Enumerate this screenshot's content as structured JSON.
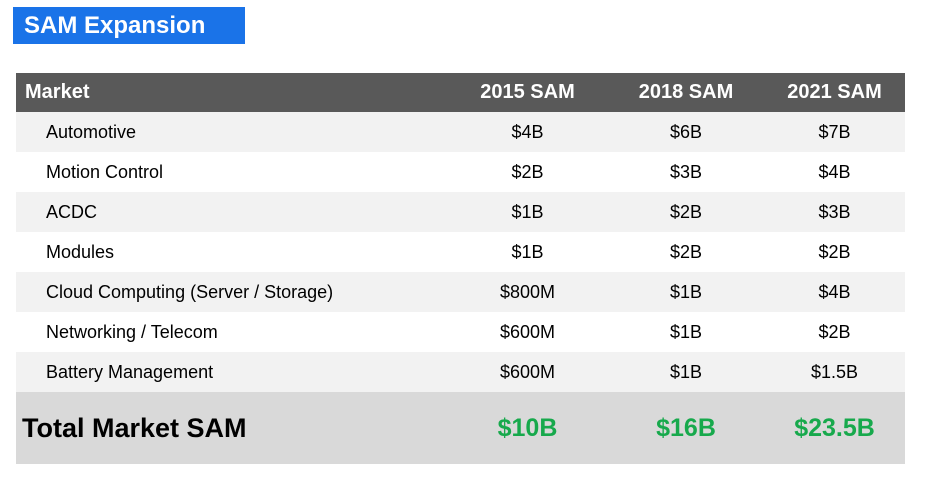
{
  "title": {
    "label": "SAM Expansion"
  },
  "colors": {
    "title_bg_blue": "#1a73e8",
    "header_bg_gray": "#595959",
    "row_alt_gray": "#f2f2f2",
    "total_bg_gray": "#d9d9d9",
    "total_value_green": "#17a94c"
  },
  "table": {
    "columns": [
      "Market",
      "2015 SAM",
      "2018 SAM",
      "2021 SAM"
    ],
    "rows": [
      {
        "market": "Automotive",
        "sam2015": "$4B",
        "sam2018": "$6B",
        "sam2021": "$7B"
      },
      {
        "market": "Motion Control",
        "sam2015": "$2B",
        "sam2018": "$3B",
        "sam2021": "$4B"
      },
      {
        "market": "ACDC",
        "sam2015": "$1B",
        "sam2018": "$2B",
        "sam2021": "$3B"
      },
      {
        "market": "Modules",
        "sam2015": "$1B",
        "sam2018": "$2B",
        "sam2021": "$2B"
      },
      {
        "market": "Cloud Computing (Server / Storage)",
        "sam2015": "$800M",
        "sam2018": "$1B",
        "sam2021": "$4B"
      },
      {
        "market": "Networking / Telecom",
        "sam2015": "$600M",
        "sam2018": "$1B",
        "sam2021": "$2B"
      },
      {
        "market": "Battery Management",
        "sam2015": "$600M",
        "sam2018": "$1B",
        "sam2021": "$1.5B"
      }
    ],
    "total": {
      "label": "Total Market SAM",
      "sam2015": "$10B",
      "sam2018": "$16B",
      "sam2021": "$23.5B"
    }
  },
  "chart_data": {
    "type": "table",
    "title": "SAM Expansion",
    "columns": [
      "Market",
      "2015 SAM",
      "2018 SAM",
      "2021 SAM"
    ],
    "rows": [
      [
        "Automotive",
        "$4B",
        "$6B",
        "$7B"
      ],
      [
        "Motion Control",
        "$2B",
        "$3B",
        "$4B"
      ],
      [
        "ACDC",
        "$1B",
        "$2B",
        "$3B"
      ],
      [
        "Modules",
        "$1B",
        "$2B",
        "$2B"
      ],
      [
        "Cloud Computing (Server / Storage)",
        "$800M",
        "$1B",
        "$4B"
      ],
      [
        "Networking / Telecom",
        "$600M",
        "$1B",
        "$2B"
      ],
      [
        "Battery Management",
        "$600M",
        "$1B",
        "$1.5B"
      ]
    ],
    "total_row": [
      "Total Market SAM",
      "$10B",
      "$16B",
      "$23.5B"
    ],
    "series_units": "USD market size (B = billions, M = millions)",
    "layout": "header row dark gray, zebra-striped body rows, total row gray with green values"
  }
}
